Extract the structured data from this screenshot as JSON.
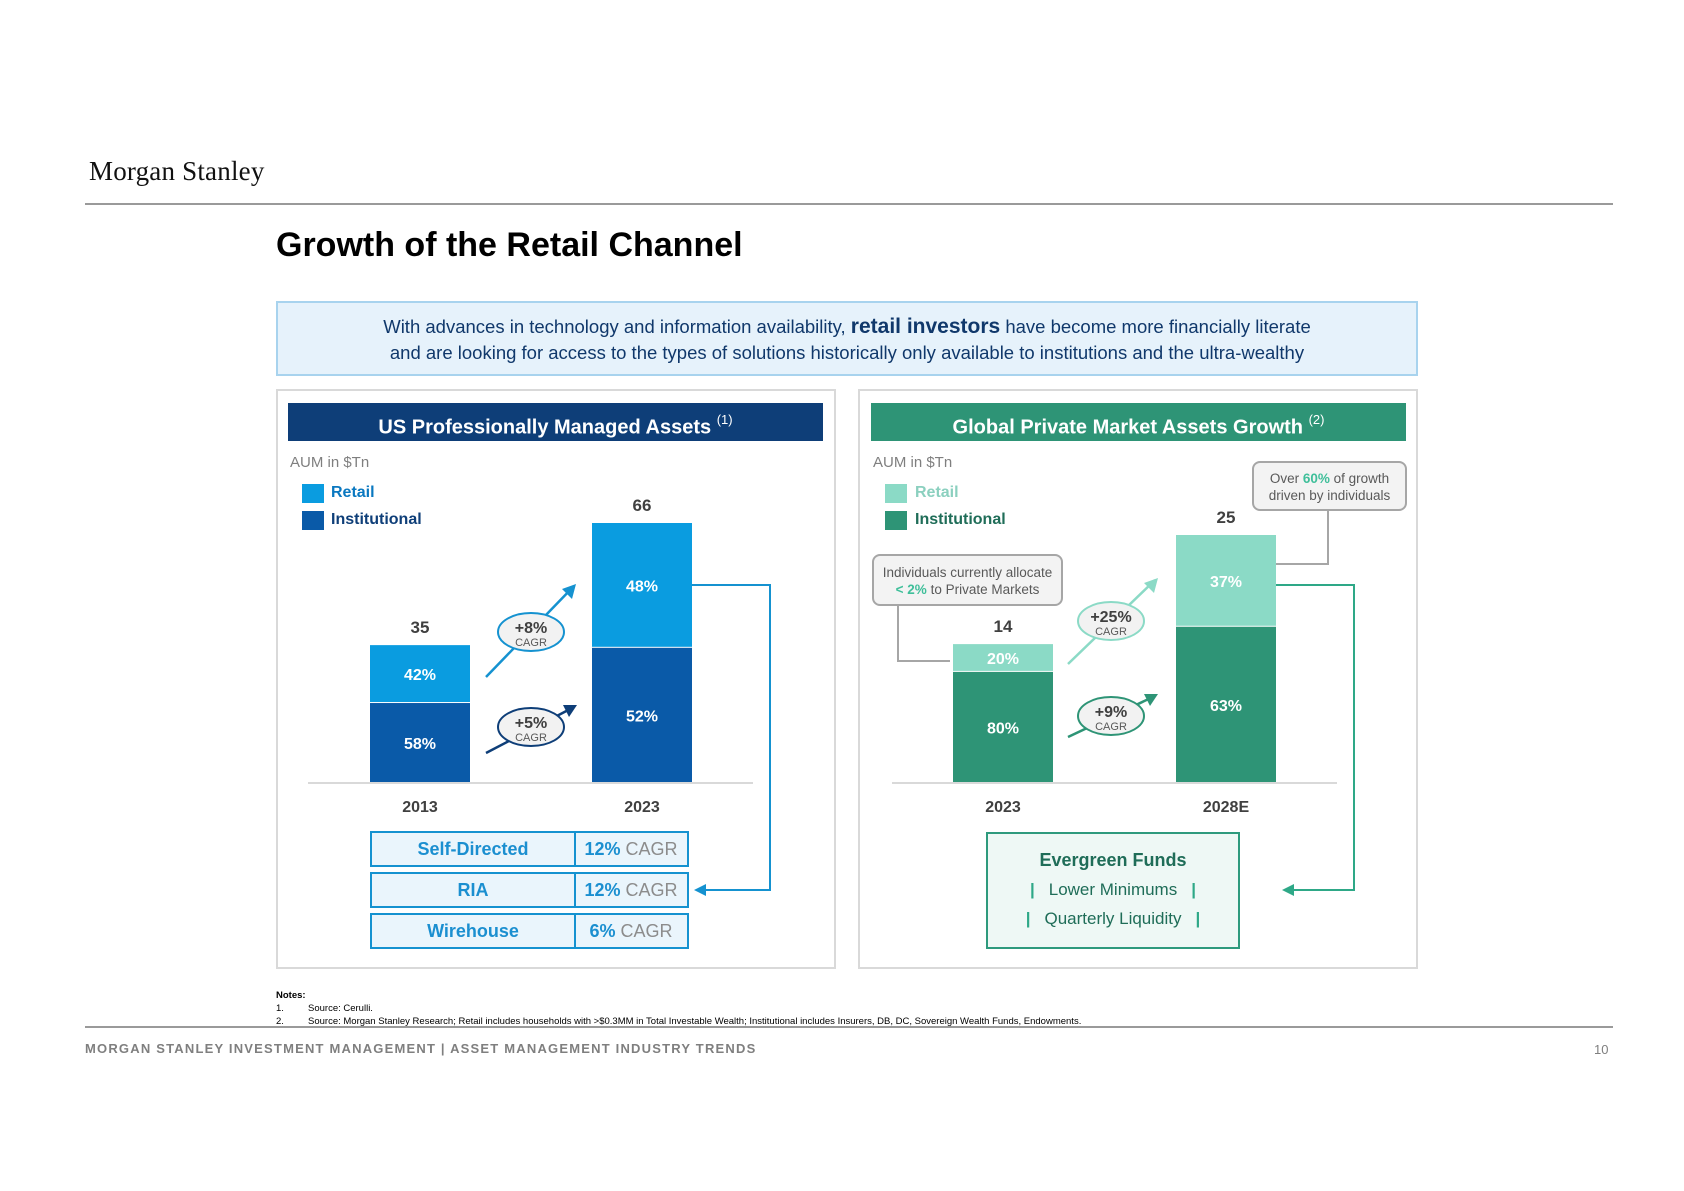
{
  "brand": {
    "logo": "Morgan Stanley"
  },
  "title": "Growth of the Retail Channel",
  "intro": {
    "line1_pre": "With advances in technology and information availability,",
    "line1_em": "retail investors",
    "line1_post": "have become more financially literate",
    "line2": "and are looking for access to the types of solutions historically only available to institutions and the ultra-wealthy"
  },
  "left_panel": {
    "header": "US Professionally Managed Assets",
    "header_note": "(1)",
    "unit": "AUM in $Tn",
    "legend": {
      "retail": "Retail",
      "institutional": "Institutional"
    },
    "cagr": [
      {
        "value": "+8%",
        "label": "CAGR"
      },
      {
        "value": "+5%",
        "label": "CAGR"
      }
    ],
    "channels": [
      {
        "name": "Self-Directed",
        "pct": "12%",
        "label": "CAGR"
      },
      {
        "name": "RIA",
        "pct": "12%",
        "label": "CAGR"
      },
      {
        "name": "Wirehouse",
        "pct": "6%",
        "label": "CAGR"
      }
    ]
  },
  "right_panel": {
    "header": "Global Private Market Assets Growth",
    "header_note": "(2)",
    "unit": "AUM in $Tn",
    "legend": {
      "retail": "Retail",
      "institutional": "Institutional"
    },
    "cagr": [
      {
        "value": "+25%",
        "label": "CAGR"
      },
      {
        "value": "+9%",
        "label": "CAGR"
      }
    ],
    "callout_growth": {
      "pre": "Over",
      "em": "60%",
      "post": "of growth",
      "line2": "driven by individuals"
    },
    "callout_alloc": {
      "line1": "Individuals currently allocate",
      "em": "< 2%",
      "post": "to Private Markets"
    },
    "evergreen": {
      "title": "Evergreen Funds",
      "items": [
        "Lower Minimums",
        "Quarterly Liquidity"
      ]
    }
  },
  "chart_data": [
    {
      "type": "bar",
      "stacked": true,
      "title": "US Professionally Managed Assets",
      "ylabel": "AUM in $Tn",
      "categories": [
        "2013",
        "2023"
      ],
      "totals": [
        35,
        66
      ],
      "series": [
        {
          "name": "Institutional",
          "share_pct": [
            58,
            52
          ],
          "color": "#0a5aa8"
        },
        {
          "name": "Retail",
          "share_pct": [
            42,
            48
          ],
          "color": "#0a9ce0"
        }
      ],
      "ylim": [
        0,
        66
      ],
      "annotations": [
        "+8% CAGR",
        "+5% CAGR"
      ]
    },
    {
      "type": "bar",
      "stacked": true,
      "title": "Global Private Market Assets Growth",
      "ylabel": "AUM in $Tn",
      "categories": [
        "2023",
        "2028E"
      ],
      "totals": [
        14,
        25
      ],
      "series": [
        {
          "name": "Institutional",
          "share_pct": [
            80,
            63
          ],
          "color": "#2e9476"
        },
        {
          "name": "Retail",
          "share_pct": [
            20,
            37
          ],
          "color": "#8bdac6"
        }
      ],
      "ylim": [
        0,
        25
      ],
      "annotations": [
        "+25% CAGR",
        "+9% CAGR"
      ]
    }
  ],
  "notes": {
    "heading": "Notes:",
    "items": [
      {
        "num": "1.",
        "text": "Source: Cerulli."
      },
      {
        "num": "2.",
        "text": "Source: Morgan Stanley Research; Retail includes households with >$0.3MM in Total Investable Wealth; Institutional includes Insurers, DB, DC, Sovereign Wealth Funds, Endowments."
      }
    ]
  },
  "footer": {
    "text": "MORGAN STANLEY INVESTMENT MANAGEMENT | ASSET MANAGEMENT INDUSTRY TRENDS",
    "page": "10"
  }
}
